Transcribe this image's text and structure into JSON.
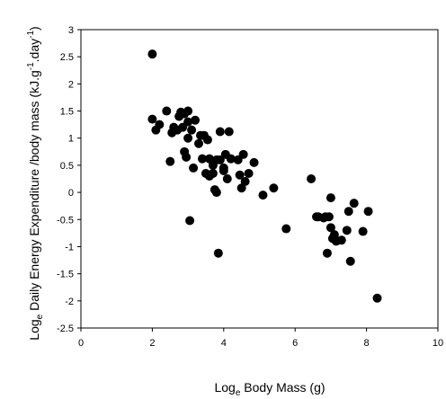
{
  "chart_data": {
    "type": "scatter",
    "xlabel": "Loge Body Mass (g)",
    "xlabel_main": "Log",
    "xlabel_sub": "e",
    "xlabel_rest": " Body Mass (g)",
    "ylabel_main": "Log",
    "ylabel_sub": "e",
    "ylabel_rest_1": " Daily Energy Expenditure /body mass (kJ.g",
    "ylabel_sup_1": "-1",
    "ylabel_rest_2": ".day",
    "ylabel_sup_2": "-1",
    "ylabel_rest_3": ")",
    "xlim": [
      0,
      10
    ],
    "ylim": [
      -2.5,
      3
    ],
    "xticks": [
      "0",
      "2",
      "4",
      "6",
      "8",
      "10"
    ],
    "yticks": [
      "3",
      "2.5",
      "2",
      "1.5",
      "1",
      "0.5",
      "0",
      "-0.5",
      "-1",
      "-1.5",
      "-2",
      "-2.5"
    ],
    "grid": false,
    "marker_color": "#000000",
    "points": [
      [
        2.0,
        2.55
      ],
      [
        2.0,
        1.35
      ],
      [
        2.1,
        1.15
      ],
      [
        2.2,
        1.25
      ],
      [
        2.4,
        1.5
      ],
      [
        2.5,
        0.57
      ],
      [
        2.55,
        1.1
      ],
      [
        2.6,
        1.2
      ],
      [
        2.7,
        1.15
      ],
      [
        2.75,
        1.4
      ],
      [
        2.8,
        1.48
      ],
      [
        2.85,
        1.2
      ],
      [
        2.9,
        0.75
      ],
      [
        2.9,
        1.45
      ],
      [
        2.95,
        0.65
      ],
      [
        3.0,
        1.5
      ],
      [
        3.0,
        1.3
      ],
      [
        3.0,
        1.0
      ],
      [
        3.05,
        -0.52
      ],
      [
        3.1,
        1.15
      ],
      [
        3.2,
        1.33
      ],
      [
        3.15,
        0.45
      ],
      [
        3.3,
        0.9
      ],
      [
        3.35,
        1.05
      ],
      [
        3.4,
        0.62
      ],
      [
        3.45,
        1.05
      ],
      [
        3.5,
        0.35
      ],
      [
        3.55,
        0.97
      ],
      [
        3.6,
        0.3
      ],
      [
        3.6,
        0.62
      ],
      [
        3.7,
        0.5
      ],
      [
        3.7,
        0.35
      ],
      [
        3.75,
        0.05
      ],
      [
        3.8,
        0.0
      ],
      [
        3.8,
        0.6
      ],
      [
        3.85,
        -1.12
      ],
      [
        3.9,
        1.12
      ],
      [
        3.9,
        0.6
      ],
      [
        4.0,
        0.4
      ],
      [
        4.0,
        0.45
      ],
      [
        4.05,
        0.7
      ],
      [
        4.1,
        0.25
      ],
      [
        4.15,
        1.12
      ],
      [
        4.2,
        0.62
      ],
      [
        4.4,
        0.6
      ],
      [
        4.45,
        0.32
      ],
      [
        4.5,
        0.08
      ],
      [
        4.55,
        0.7
      ],
      [
        4.6,
        0.2
      ],
      [
        4.7,
        0.35
      ],
      [
        4.85,
        0.55
      ],
      [
        5.1,
        -0.05
      ],
      [
        5.4,
        0.08
      ],
      [
        5.75,
        -0.67
      ],
      [
        6.45,
        0.25
      ],
      [
        6.6,
        -0.45
      ],
      [
        6.65,
        -0.45
      ],
      [
        6.8,
        -0.47
      ],
      [
        6.85,
        -0.45
      ],
      [
        6.9,
        -1.12
      ],
      [
        6.95,
        -0.45
      ],
      [
        7.0,
        -0.1
      ],
      [
        7.0,
        -0.65
      ],
      [
        7.05,
        -0.85
      ],
      [
        7.1,
        -0.78
      ],
      [
        7.15,
        -0.9
      ],
      [
        7.3,
        -0.88
      ],
      [
        7.45,
        -0.7
      ],
      [
        7.5,
        -0.35
      ],
      [
        7.55,
        -1.27
      ],
      [
        7.65,
        -0.2
      ],
      [
        7.9,
        -0.72
      ],
      [
        8.05,
        -0.35
      ],
      [
        8.3,
        -1.95
      ]
    ]
  }
}
